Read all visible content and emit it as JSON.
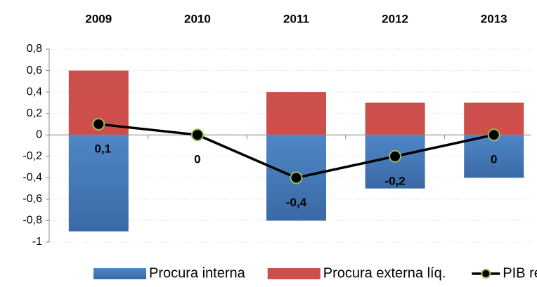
{
  "chart_data": {
    "type": "bar",
    "categories": [
      "2009",
      "2010",
      "2011",
      "2012",
      "2013"
    ],
    "series": [
      {
        "name": "Procura interna",
        "color": "#4a7ebb",
        "values": [
          -0.9,
          0,
          -0.8,
          -0.5,
          -0.4
        ]
      },
      {
        "name": "Procura externa líq.",
        "color": "#c0504d",
        "values": [
          0.6,
          0,
          0.4,
          0.3,
          0.3
        ]
      },
      {
        "name": "PIB real",
        "color": "#000000",
        "marker_color": "#9bbb59",
        "type": "line",
        "values": [
          0.1,
          0,
          -0.4,
          -0.2,
          0
        ],
        "value_labels": [
          "0,1",
          "0",
          "-0,4",
          "-0,2",
          "0"
        ]
      }
    ],
    "ylim": [
      -1,
      0.8
    ],
    "yticks": [
      -1,
      {
        "value": -0.8,
        "label": "-0,8"
      },
      {
        "value": -0.6,
        "label": "-0,6"
      },
      {
        "value": -0.4,
        "label": "-0,4"
      },
      {
        "value": -0.2,
        "label": "-0,2"
      },
      0,
      {
        "value": 0.2,
        "label": "0,2"
      },
      {
        "value": 0.4,
        "label": "0,4"
      },
      {
        "value": 0.6,
        "label": "0,6"
      },
      {
        "value": 0.8,
        "label": "0,8"
      }
    ],
    "grid": true,
    "legend": "bottom"
  }
}
